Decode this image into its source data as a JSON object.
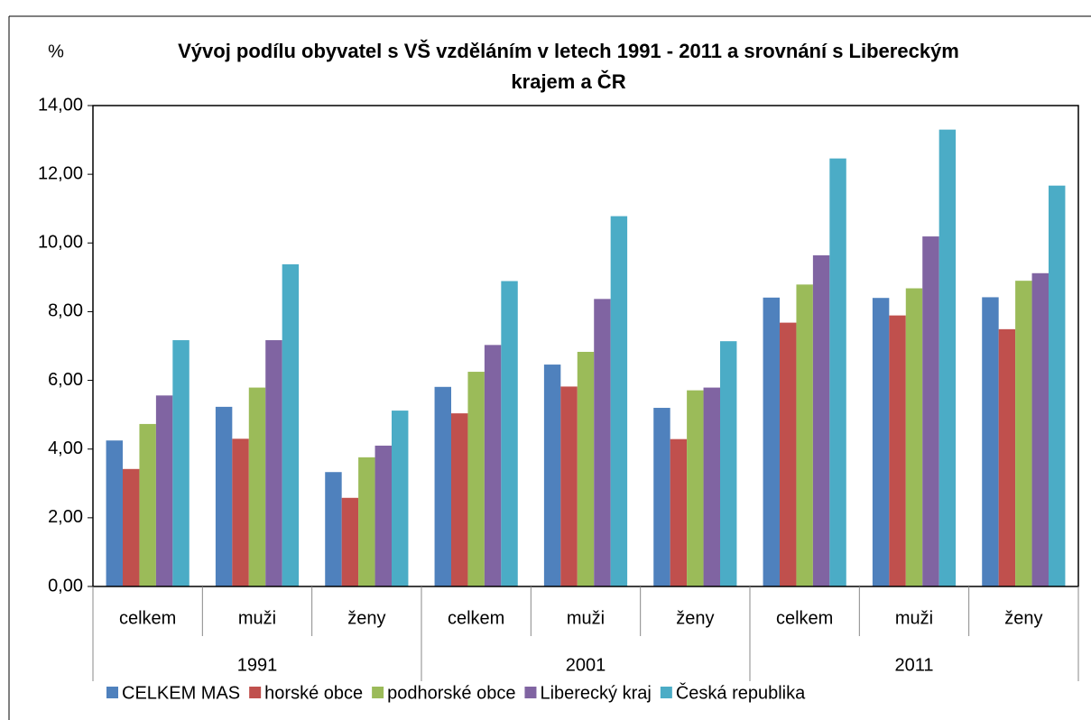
{
  "chart_data": {
    "type": "bar",
    "title": "Vývoj podílu obyvatel s VŠ vzděláním v letech 1991 - 2011 a srovnání s Libereckým krajem a ČR",
    "y_label": "%",
    "categories": [
      "celkem",
      "muži",
      "ženy",
      "celkem",
      "muži",
      "ženy",
      "celkem",
      "muži",
      "ženy"
    ],
    "category_groups": [
      "1991",
      "2001",
      "2011"
    ],
    "series": [
      {
        "name": "CELKEM MAS",
        "color": "#4f81bd",
        "values": [
          4.25,
          5.23,
          3.33,
          5.81,
          6.46,
          5.2,
          8.41,
          8.4,
          8.42
        ]
      },
      {
        "name": "horské obce",
        "color": "#c0504d",
        "values": [
          3.42,
          4.3,
          2.58,
          5.04,
          5.82,
          4.29,
          7.68,
          7.89,
          7.49
        ]
      },
      {
        "name": "podhorské obce",
        "color": "#9bbb59",
        "values": [
          4.73,
          5.79,
          3.76,
          6.25,
          6.83,
          5.71,
          8.79,
          8.68,
          8.9
        ]
      },
      {
        "name": "Liberecký kraj",
        "color": "#8064a2",
        "values": [
          5.56,
          7.17,
          4.1,
          7.03,
          8.37,
          5.79,
          9.64,
          10.19,
          9.12
        ]
      },
      {
        "name": "Česká republika",
        "color": "#4bacc6",
        "values": [
          7.17,
          9.38,
          5.12,
          8.89,
          10.78,
          7.14,
          12.46,
          13.3,
          11.67
        ]
      }
    ],
    "ylim": [
      0,
      14
    ],
    "yticks": [
      {
        "value": 0,
        "label": "0,00"
      },
      {
        "value": 2,
        "label": "2,00"
      },
      {
        "value": 4,
        "label": "4,00"
      },
      {
        "value": 6,
        "label": "6,00"
      },
      {
        "value": 8,
        "label": "8,00"
      },
      {
        "value": 10,
        "label": "10,00"
      },
      {
        "value": 12,
        "label": "12,00"
      },
      {
        "value": 14,
        "label": "14,00"
      }
    ],
    "grid": false,
    "legend": "bottom"
  }
}
